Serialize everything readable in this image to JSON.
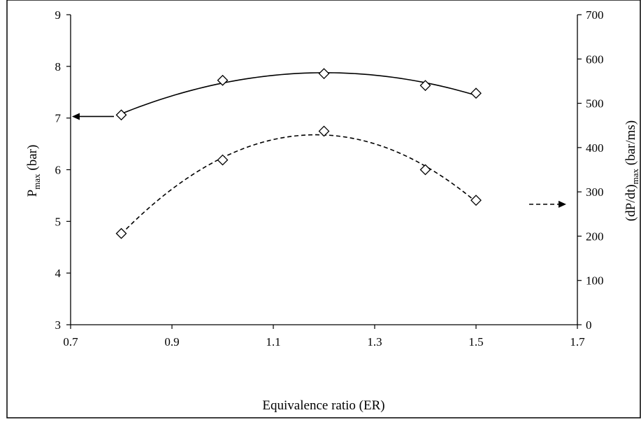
{
  "chart_data": {
    "type": "scatter",
    "xlabel": "Equivalence ratio (ER)",
    "ylabel_left": {
      "main": "P",
      "sub": "max",
      "unit": " (bar)"
    },
    "ylabel_right": {
      "main": "(dP/dt)",
      "sub": "max",
      "unit": " (bar/ms)"
    },
    "xlim": [
      0.7,
      1.7
    ],
    "ylim_left": [
      3,
      9
    ],
    "ylim_right": [
      0,
      700
    ],
    "x_ticks": [
      "0.7",
      "0.9",
      "1.1",
      "1.3",
      "1.5",
      "1.7"
    ],
    "y_left_ticks": [
      "3",
      "4",
      "5",
      "6",
      "7",
      "8",
      "9"
    ],
    "y_right_ticks": [
      "0",
      "100",
      "200",
      "300",
      "400",
      "500",
      "600",
      "700"
    ],
    "grid": false,
    "marker": "diamond",
    "series": [
      {
        "axis": "left",
        "line_style": "solid",
        "fit": "quadratic",
        "x": [
          0.8,
          1.0,
          1.2,
          1.4,
          1.5
        ],
        "y": [
          7.06,
          7.73,
          7.86,
          7.63,
          7.48
        ]
      },
      {
        "axis": "right",
        "line_style": "dashed",
        "fit": "quadratic",
        "x": [
          0.8,
          1.0,
          1.2,
          1.4,
          1.5
        ],
        "y": [
          206,
          372,
          437,
          350,
          281
        ]
      }
    ],
    "annotations": [
      {
        "type": "arrow",
        "direction": "left",
        "points_to_axis": "left",
        "line_style": "solid",
        "y_left": 7.03
      },
      {
        "type": "arrow",
        "direction": "right",
        "points_to_axis": "right",
        "line_style": "dashed",
        "y_right": 272
      }
    ]
  }
}
